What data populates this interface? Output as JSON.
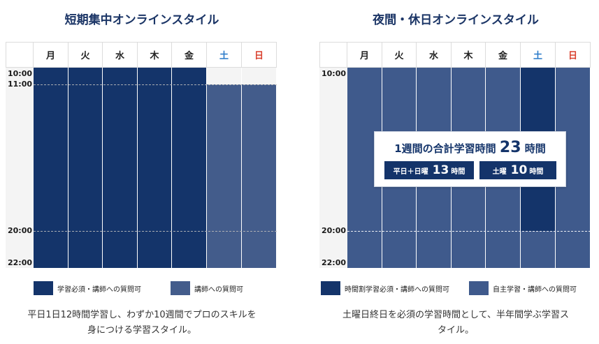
{
  "colors": {
    "dark": "#14346a",
    "mid": "#435c8b",
    "saturday": "#2a7ac9",
    "sunday": "#d9412f",
    "title": "#1b3566"
  },
  "days": [
    "月",
    "火",
    "水",
    "木",
    "金",
    "土",
    "日"
  ],
  "left": {
    "title": "短期集中オンラインスタイル",
    "times": [
      "10:00",
      "11:00",
      "20:00",
      "22:00"
    ],
    "legend": [
      {
        "label": "学習必須・講師への質問可",
        "color": "#14346a"
      },
      {
        "label": "講師への質問可",
        "color": "#435c8b"
      }
    ],
    "caption_line1": "平日1日12時間学習し、わずか10週間でプロのスキルを",
    "caption_line2": "身につける学習スタイル。"
  },
  "right": {
    "title": "夜間・休日オンラインスタイル",
    "times": [
      "10:00",
      "20:00",
      "22:00"
    ],
    "summary": {
      "main_prefix": "1週間の合計学習時間",
      "main_value": "23",
      "main_unit": "時間",
      "weekday_label": "平日＋日曜",
      "weekday_value": "13",
      "weekday_unit": "時間",
      "saturday_label": "土曜",
      "saturday_value": "10",
      "saturday_unit": "時間"
    },
    "legend": [
      {
        "label": "時間割学習必須・講師への質問可",
        "color": "#14346a"
      },
      {
        "label": "自主学習・講師への質問可",
        "color": "#435c8b"
      }
    ],
    "caption_line1": "土曜日終日を必須の学習時間として、半年間学ぶ学習ス",
    "caption_line2": "タイル。"
  }
}
